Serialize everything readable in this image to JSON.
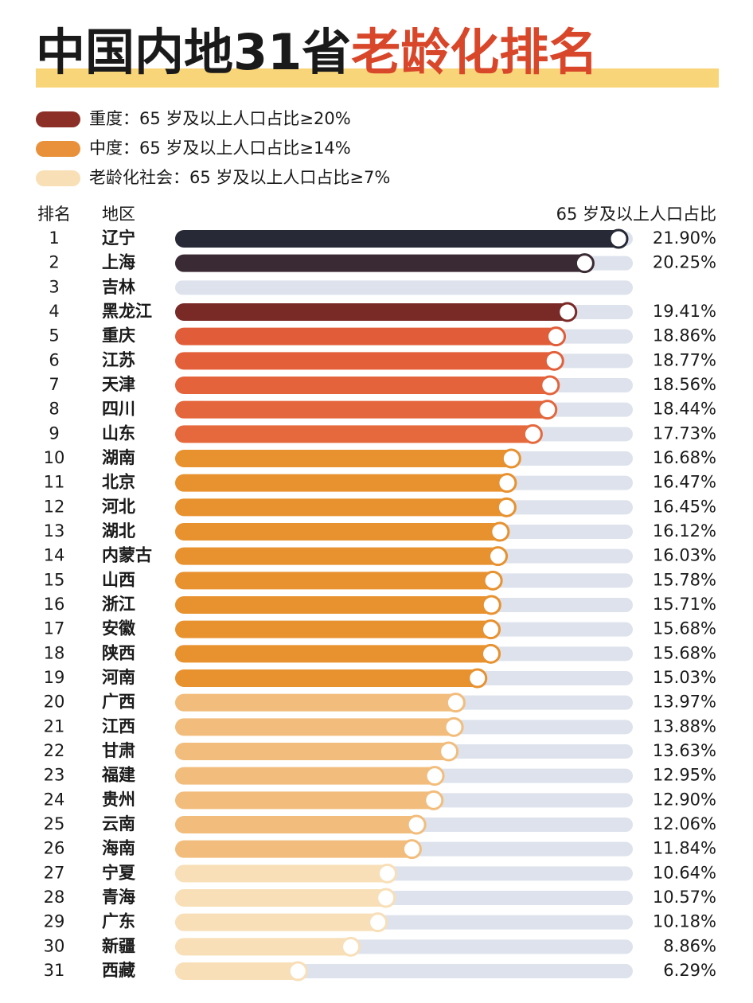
{
  "chart_data": {
    "type": "bar",
    "title": "中国内地31省",
    "title_highlight": "老龄化排名",
    "legend": [
      {
        "label": "重度：65 岁及以上人口占比≥20%",
        "color": "#8c2f27"
      },
      {
        "label": "中度：65 岁及以上人口占比≥14%",
        "color": "#e8903a"
      },
      {
        "label": "老龄化社会：65 岁及以上人口占比≥7%",
        "color": "#f8dfb5"
      }
    ],
    "rank_header": "排名",
    "category_header": "地区",
    "value_header": "65 岁及以上人口占比",
    "ranks": [
      1,
      2,
      3,
      4,
      5,
      6,
      7,
      8,
      9,
      10,
      11,
      12,
      13,
      14,
      15,
      16,
      17,
      18,
      19,
      20,
      21,
      22,
      23,
      24,
      25,
      26,
      27,
      28,
      29,
      30,
      31
    ],
    "categories": [
      "辽宁",
      "上海",
      "吉林",
      "黑龙江",
      "重庆",
      "江苏",
      "天津",
      "四川",
      "山东",
      "湖南",
      "北京",
      "河北",
      "湖北",
      "内蒙古",
      "山西",
      "浙江",
      "安徽",
      "陕西",
      "河南",
      "广西",
      "江西",
      "甘肃",
      "福建",
      "贵州",
      "云南",
      "海南",
      "宁夏",
      "青海",
      "广东",
      "新疆",
      "西藏"
    ],
    "values": [
      21.9,
      20.25,
      null,
      19.41,
      18.86,
      18.77,
      18.56,
      18.44,
      17.73,
      16.68,
      16.47,
      16.45,
      16.12,
      16.03,
      15.78,
      15.71,
      15.68,
      15.68,
      15.03,
      13.97,
      13.88,
      13.63,
      12.95,
      12.9,
      12.06,
      11.84,
      10.64,
      10.57,
      10.18,
      8.86,
      6.29
    ],
    "value_labels": [
      "21.90%",
      "20.25%",
      null,
      "19.41%",
      "18.86%",
      "18.77%",
      "18.56%",
      "18.44%",
      "17.73%",
      "16.68%",
      "16.47%",
      "16.45%",
      "16.12%",
      "16.03%",
      "15.78%",
      "15.71%",
      "15.68%",
      "15.68%",
      "15.03%",
      "13.97%",
      "13.88%",
      "13.63%",
      "12.95%",
      "12.90%",
      "12.06%",
      "11.84%",
      "10.64%",
      "10.57%",
      "10.18%",
      "8.86%",
      "6.29%"
    ],
    "colors": [
      "#272a36",
      "#3a2a33",
      "#7a2a26",
      "#7a2a26",
      "#e15c38",
      "#e35f3a",
      "#e4633b",
      "#e4663c",
      "#e5693d",
      "#e8912f",
      "#e8912f",
      "#e8912f",
      "#e8912f",
      "#e8912f",
      "#e8912f",
      "#e8912f",
      "#e8912f",
      "#e8912f",
      "#e8912f",
      "#f2bd7c",
      "#f2bd7c",
      "#f2bd7c",
      "#f2bd7c",
      "#f2bd7c",
      "#f2bd7c",
      "#f2bd7c",
      "#f8dfb8",
      "#f8dfb8",
      "#f8dfb8",
      "#f8dfb8",
      "#f8dfb8"
    ]
  }
}
